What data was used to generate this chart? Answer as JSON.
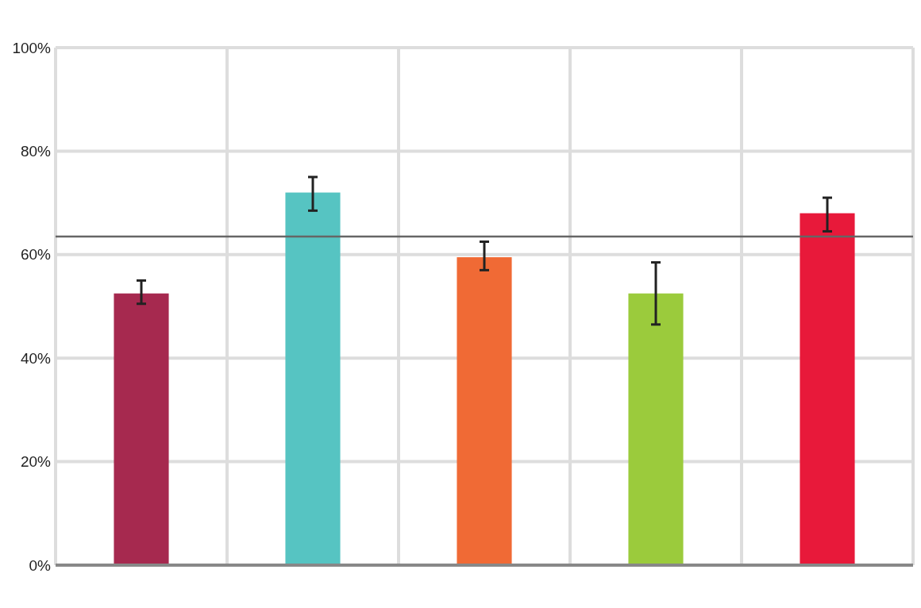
{
  "chart_data": {
    "type": "bar",
    "categories": [
      null,
      null,
      null,
      null,
      null
    ],
    "values": [
      52.5,
      72,
      59.5,
      52.5,
      68
    ],
    "colors": [
      "#a6294f",
      "#56c4c2",
      "#f06a35",
      "#9bcb3c",
      "#e8193a"
    ],
    "errors": [
      [
        50.5,
        55
      ],
      [
        68.5,
        75
      ],
      [
        57,
        62.5
      ],
      [
        46.5,
        58.5
      ],
      [
        64.5,
        71
      ]
    ],
    "ylim": [
      0,
      100
    ],
    "yticks": [
      {
        "value": 0,
        "label": "0%"
      },
      {
        "value": 20,
        "label": "20%"
      },
      {
        "value": 40,
        "label": "40%"
      },
      {
        "value": 60,
        "label": "60%"
      },
      {
        "value": 80,
        "label": "80%"
      },
      {
        "value": 100,
        "label": "100%"
      }
    ],
    "grid": true,
    "ref_lines": [
      {
        "axis": "y",
        "value": 63.5,
        "color": "#666666"
      }
    ]
  }
}
